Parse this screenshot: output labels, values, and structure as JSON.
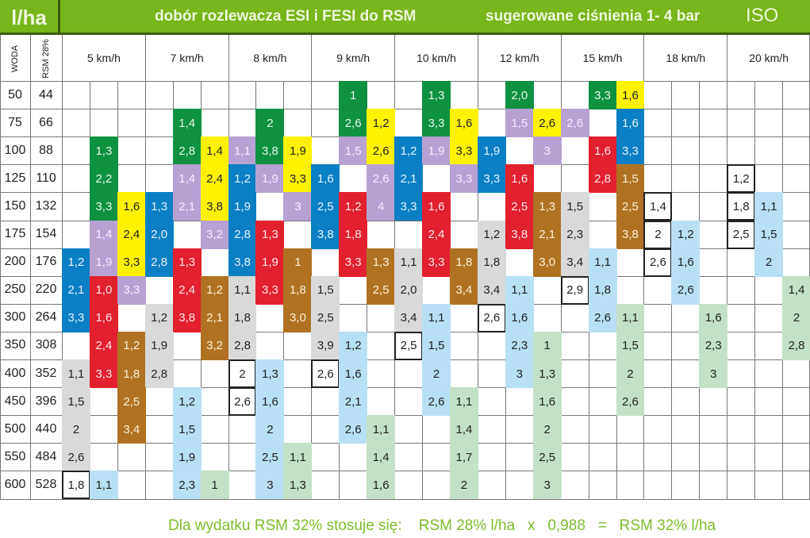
{
  "header": {
    "unit": "l/ha",
    "title": "dobór rozlewacza ESI i FESI do RSM",
    "subtitle": "sugerowane ciśnienia 1- 4 bar",
    "standard": "ISO"
  },
  "columns": {
    "woda_label": "WODA",
    "rsm_label": "RSM 28%",
    "speeds": [
      "5 km/h",
      "7 km/h",
      "8 km/h",
      "9 km/h",
      "10 km/h",
      "12 km/h",
      "15 km/h",
      "18 km/h",
      "20 km/h"
    ]
  },
  "colors": {
    "G": {
      "bg": "#0f9142",
      "fg": "#e8f5ea"
    },
    "Y": {
      "bg": "#fff200",
      "fg": "#222222"
    },
    "P": {
      "bg": "#b7a1d2",
      "fg": "#f4eefa"
    },
    "B": {
      "bg": "#0b7fc3",
      "fg": "#e6f3fb"
    },
    "R": {
      "bg": "#e2202e",
      "fg": "#fde9ea"
    },
    "Br": {
      "bg": "#b07222",
      "fg": "#fbefd8"
    },
    "Gr": {
      "bg": "#d9d9d9",
      "fg": "#222222"
    },
    "LB": {
      "bg": "#b9dff4",
      "fg": "#222222"
    },
    "LG": {
      "bg": "#c3e1c6",
      "fg": "#222222"
    },
    "W": {
      "bg": "#ffffff",
      "fg": "#222222",
      "border": "#222222"
    }
  },
  "rows": [
    {
      "woda": "50",
      "rsm": "44",
      "cells": [
        [
          10,
          "G",
          "1"
        ],
        [
          13,
          "G",
          "1,3"
        ],
        [
          16,
          "G",
          "2,0"
        ],
        [
          19,
          "G",
          "3,3"
        ],
        [
          20,
          "Y",
          "1,6"
        ]
      ]
    },
    {
      "woda": "75",
      "rsm": "66",
      "cells": [
        [
          4,
          "G",
          "1,4"
        ],
        [
          7,
          "G",
          "2"
        ],
        [
          10,
          "G",
          "2,6"
        ],
        [
          11,
          "Y",
          "1,2"
        ],
        [
          13,
          "G",
          "3,3"
        ],
        [
          14,
          "Y",
          "1,6"
        ],
        [
          16,
          "P",
          "1,5"
        ],
        [
          17,
          "Y",
          "2,6"
        ],
        [
          18,
          "P",
          "2,6"
        ],
        [
          20,
          "B",
          "1,6"
        ]
      ]
    },
    {
      "woda": "100",
      "rsm": "88",
      "cells": [
        [
          1,
          "G",
          "1,3"
        ],
        [
          4,
          "G",
          "2,8"
        ],
        [
          5,
          "Y",
          "1,4"
        ],
        [
          6,
          "P",
          "1,1"
        ],
        [
          7,
          "G",
          "3,8"
        ],
        [
          8,
          "Y",
          "1,9"
        ],
        [
          10,
          "P",
          "1,5"
        ],
        [
          11,
          "Y",
          "2,6"
        ],
        [
          12,
          "B",
          "1,2"
        ],
        [
          13,
          "P",
          "1,9"
        ],
        [
          14,
          "Y",
          "3,3"
        ],
        [
          15,
          "B",
          "1,9"
        ],
        [
          17,
          "P",
          "3"
        ],
        [
          19,
          "R",
          "1,6"
        ],
        [
          20,
          "B",
          "3,3"
        ]
      ]
    },
    {
      "woda": "125",
      "rsm": "110",
      "cells": [
        [
          1,
          "G",
          "2,2"
        ],
        [
          4,
          "P",
          "1,4"
        ],
        [
          5,
          "Y",
          "2,4"
        ],
        [
          6,
          "B",
          "1,2"
        ],
        [
          7,
          "P",
          "1,9"
        ],
        [
          8,
          "Y",
          "3,3"
        ],
        [
          9,
          "B",
          "1,6"
        ],
        [
          11,
          "P",
          "2,6"
        ],
        [
          12,
          "B",
          "2,1"
        ],
        [
          14,
          "P",
          "3,3"
        ],
        [
          15,
          "B",
          "3,3"
        ],
        [
          16,
          "R",
          "1,6"
        ],
        [
          19,
          "R",
          "2,8"
        ],
        [
          20,
          "Br",
          "1,5"
        ],
        [
          24,
          "W",
          "1,2"
        ]
      ]
    },
    {
      "woda": "150",
      "rsm": "132",
      "cells": [
        [
          1,
          "G",
          "3,3"
        ],
        [
          2,
          "Y",
          "1,6"
        ],
        [
          3,
          "B",
          "1,3"
        ],
        [
          4,
          "P",
          "2,1"
        ],
        [
          5,
          "Y",
          "3,8"
        ],
        [
          6,
          "B",
          "1,9"
        ],
        [
          8,
          "P",
          "3"
        ],
        [
          9,
          "B",
          "2,5"
        ],
        [
          10,
          "R",
          "1,2"
        ],
        [
          11,
          "P",
          "4"
        ],
        [
          12,
          "B",
          "3,3"
        ],
        [
          13,
          "R",
          "1,6"
        ],
        [
          16,
          "R",
          "2,5"
        ],
        [
          17,
          "Br",
          "1,3"
        ],
        [
          18,
          "Gr",
          "1,5"
        ],
        [
          20,
          "Br",
          "2,5"
        ],
        [
          21,
          "W",
          "1,4"
        ],
        [
          24,
          "W",
          "1,8"
        ],
        [
          25,
          "LB",
          "1,1"
        ]
      ]
    },
    {
      "woda": "175",
      "rsm": "154",
      "cells": [
        [
          1,
          "P",
          "1,4"
        ],
        [
          2,
          "Y",
          "2,4"
        ],
        [
          3,
          "B",
          "2,0"
        ],
        [
          5,
          "P",
          "3,2"
        ],
        [
          6,
          "B",
          "2,8"
        ],
        [
          7,
          "R",
          "1,3"
        ],
        [
          9,
          "B",
          "3,8"
        ],
        [
          10,
          "R",
          "1,8"
        ],
        [
          13,
          "R",
          "2,4"
        ],
        [
          15,
          "Gr",
          "1,2"
        ],
        [
          16,
          "R",
          "3,8"
        ],
        [
          17,
          "Br",
          "2,1"
        ],
        [
          18,
          "Gr",
          "2,3"
        ],
        [
          20,
          "Br",
          "3,8"
        ],
        [
          21,
          "W",
          "2"
        ],
        [
          22,
          "LB",
          "1,2"
        ],
        [
          24,
          "W",
          "2,5"
        ],
        [
          25,
          "LB",
          "1,5"
        ]
      ]
    },
    {
      "woda": "200",
      "rsm": "176",
      "cells": [
        [
          0,
          "B",
          "1,2"
        ],
        [
          1,
          "P",
          "1,9"
        ],
        [
          2,
          "Y",
          "3,3"
        ],
        [
          3,
          "B",
          "2,8"
        ],
        [
          4,
          "R",
          "1,3"
        ],
        [
          6,
          "B",
          "3,8"
        ],
        [
          7,
          "R",
          "1,9"
        ],
        [
          8,
          "Br",
          "1"
        ],
        [
          10,
          "R",
          "3,3"
        ],
        [
          11,
          "Br",
          "1,3"
        ],
        [
          12,
          "Gr",
          "1,1"
        ],
        [
          13,
          "R",
          "3,3"
        ],
        [
          14,
          "Br",
          "1,8"
        ],
        [
          15,
          "Gr",
          "1,8"
        ],
        [
          17,
          "Br",
          "3,0"
        ],
        [
          18,
          "Gr",
          "3,4"
        ],
        [
          19,
          "LB",
          "1,1"
        ],
        [
          21,
          "W",
          "2,6"
        ],
        [
          22,
          "LB",
          "1,6"
        ],
        [
          25,
          "LB",
          "2"
        ]
      ]
    },
    {
      "woda": "250",
      "rsm": "220",
      "cells": [
        [
          0,
          "B",
          "2,1"
        ],
        [
          1,
          "R",
          "1,0"
        ],
        [
          2,
          "P",
          "3,3"
        ],
        [
          4,
          "R",
          "2,4"
        ],
        [
          5,
          "Br",
          "1,2"
        ],
        [
          6,
          "Gr",
          "1,1"
        ],
        [
          7,
          "R",
          "3,3"
        ],
        [
          8,
          "Br",
          "1,8"
        ],
        [
          9,
          "Gr",
          "1,5"
        ],
        [
          11,
          "Br",
          "2,5"
        ],
        [
          12,
          "Gr",
          "2,0"
        ],
        [
          14,
          "Br",
          "3,4"
        ],
        [
          15,
          "Gr",
          "3,4"
        ],
        [
          16,
          "LB",
          "1,1"
        ],
        [
          18,
          "W",
          "2,9"
        ],
        [
          19,
          "LB",
          "1,8"
        ],
        [
          22,
          "LB",
          "2,6"
        ],
        [
          26,
          "LG",
          "1,4"
        ]
      ]
    },
    {
      "woda": "300",
      "rsm": "264",
      "cells": [
        [
          0,
          "B",
          "3,3"
        ],
        [
          1,
          "R",
          "1,6"
        ],
        [
          3,
          "Gr",
          "1,2"
        ],
        [
          4,
          "R",
          "3,8"
        ],
        [
          5,
          "Br",
          "2,1"
        ],
        [
          6,
          "Gr",
          "1,8"
        ],
        [
          8,
          "Br",
          "3,0"
        ],
        [
          9,
          "Gr",
          "2,5"
        ],
        [
          12,
          "Gr",
          "3,4"
        ],
        [
          13,
          "LB",
          "1,1"
        ],
        [
          15,
          "W",
          "2,6"
        ],
        [
          16,
          "LB",
          "1,6"
        ],
        [
          19,
          "LB",
          "2,6"
        ],
        [
          20,
          "LG",
          "1,1"
        ],
        [
          23,
          "LG",
          "1,6"
        ],
        [
          26,
          "LG",
          "2"
        ]
      ]
    },
    {
      "woda": "350",
      "rsm": "308",
      "cells": [
        [
          1,
          "R",
          "2,4"
        ],
        [
          2,
          "Br",
          "1,2"
        ],
        [
          3,
          "Gr",
          "1,9"
        ],
        [
          5,
          "Br",
          "3,2"
        ],
        [
          6,
          "Gr",
          "2,8"
        ],
        [
          9,
          "Gr",
          "3,9"
        ],
        [
          10,
          "LB",
          "1,2"
        ],
        [
          12,
          "W",
          "2,5"
        ],
        [
          13,
          "LB",
          "1,5"
        ],
        [
          16,
          "LB",
          "2,3"
        ],
        [
          17,
          "LG",
          "1"
        ],
        [
          20,
          "LG",
          "1,5"
        ],
        [
          23,
          "LG",
          "2,3"
        ],
        [
          26,
          "LG",
          "2,8"
        ]
      ]
    },
    {
      "woda": "400",
      "rsm": "352",
      "cells": [
        [
          0,
          "Gr",
          "1,1"
        ],
        [
          1,
          "R",
          "3,3"
        ],
        [
          2,
          "Br",
          "1,8"
        ],
        [
          3,
          "Gr",
          "2,8"
        ],
        [
          6,
          "W",
          "2"
        ],
        [
          7,
          "LB",
          "1,3"
        ],
        [
          9,
          "W",
          "2,6"
        ],
        [
          10,
          "LB",
          "1,6"
        ],
        [
          13,
          "LB",
          "2"
        ],
        [
          16,
          "LB",
          "3"
        ],
        [
          17,
          "LG",
          "1,3"
        ],
        [
          20,
          "LG",
          "2"
        ],
        [
          23,
          "LG",
          "3"
        ]
      ]
    },
    {
      "woda": "450",
      "rsm": "396",
      "cells": [
        [
          0,
          "Gr",
          "1,5"
        ],
        [
          2,
          "Br",
          "2,5"
        ],
        [
          4,
          "LB",
          "1,2"
        ],
        [
          6,
          "W",
          "2,6"
        ],
        [
          7,
          "LB",
          "1,6"
        ],
        [
          10,
          "LB",
          "2,1"
        ],
        [
          13,
          "LB",
          "2,6"
        ],
        [
          14,
          "LG",
          "1,1"
        ],
        [
          17,
          "LG",
          "1,6"
        ],
        [
          20,
          "LG",
          "2,6"
        ]
      ]
    },
    {
      "woda": "500",
      "rsm": "440",
      "cells": [
        [
          0,
          "Gr",
          "2"
        ],
        [
          2,
          "Br",
          "3,4"
        ],
        [
          4,
          "LB",
          "1,5"
        ],
        [
          7,
          "LB",
          "2"
        ],
        [
          10,
          "LB",
          "2,6"
        ],
        [
          11,
          "LG",
          "1,1"
        ],
        [
          14,
          "LG",
          "1,4"
        ],
        [
          17,
          "LG",
          "2"
        ]
      ]
    },
    {
      "woda": "550",
      "rsm": "484",
      "cells": [
        [
          0,
          "Gr",
          "2,6"
        ],
        [
          4,
          "LB",
          "1,9"
        ],
        [
          7,
          "LB",
          "2,5"
        ],
        [
          8,
          "LG",
          "1,1"
        ],
        [
          11,
          "LG",
          "1,4"
        ],
        [
          14,
          "LG",
          "1,7"
        ],
        [
          17,
          "LG",
          "2,5"
        ]
      ]
    },
    {
      "woda": "600",
      "rsm": "528",
      "cells": [
        [
          0,
          "W",
          "1,8"
        ],
        [
          1,
          "LB",
          "1,1"
        ],
        [
          4,
          "LB",
          "2,3"
        ],
        [
          5,
          "LG",
          "1"
        ],
        [
          7,
          "LB",
          "3"
        ],
        [
          8,
          "LG",
          "1,3"
        ],
        [
          11,
          "LG",
          "1,6"
        ],
        [
          14,
          "LG",
          "2"
        ],
        [
          17,
          "LG",
          "3"
        ]
      ]
    }
  ],
  "footer": {
    "text": "Dla wydatku RSM 32% stosuje się:    RSM 28% l/ha   x   0,988   =   RSM 32% l/ha"
  }
}
